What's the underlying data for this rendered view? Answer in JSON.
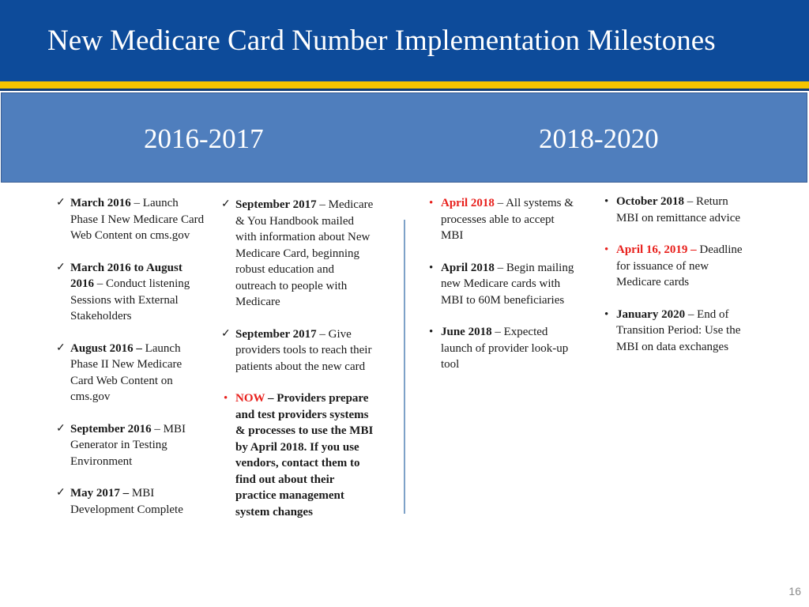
{
  "title": "New Medicare Card Number Implementation Milestones",
  "periods": {
    "left": "2016-2017",
    "right": "2018-2020"
  },
  "col1": {
    "items": [
      {
        "bold": "March 2016",
        "rest": " – Launch Phase I New Medicare Card Web Content on cms.gov"
      },
      {
        "bold": "March 2016 to August 2016",
        "rest": " – Conduct listening Sessions with External Stakeholders"
      },
      {
        "bold": "August 2016 –",
        "rest": " Launch Phase II New Medicare Card Web Content on cms.gov"
      },
      {
        "bold": "September 2016",
        "rest": " – MBI Generator in Testing Environment"
      },
      {
        "bold": "May 2017 –",
        "rest": " MBI Development Complete"
      }
    ]
  },
  "col2": {
    "items": [
      {
        "bold": "September 2017",
        "rest": " – Medicare & You Handbook mailed with information about New Medicare Card, beginning robust education and outreach to people with Medicare"
      },
      {
        "bold": "September 2017",
        "rest": " – Give providers tools to reach their patients about the new card"
      }
    ],
    "now_item": {
      "red": "NOW",
      "bold": " – Providers prepare and test providers systems & processes to use the MBI by April 2018. If you use vendors, contact them to find out about their practice management system changes"
    }
  },
  "col3": {
    "items": [
      {
        "bold": "April 2018",
        "rest": " – All systems & processes able to accept MBI",
        "red_date": true
      },
      {
        "bold": "April 2018",
        "rest": " – Begin mailing new Medicare cards with MBI to 60M beneficiaries",
        "red_date": false
      },
      {
        "bold": "June 2018",
        "rest": " – Expected launch of provider look-up tool",
        "red_date": false
      }
    ]
  },
  "col4": {
    "items": [
      {
        "bold": "October 2018",
        "rest": " – Return MBI on remittance advice",
        "red_date": false
      },
      {
        "bold": "April 16, 2019 –",
        "rest": " Deadline for issuance of new Medicare cards",
        "red_date": true
      },
      {
        "bold": "January 2020",
        "rest": " – End of Transition Period: Use the MBI on data exchanges",
        "red_date": false
      }
    ]
  },
  "page_number": "16",
  "colors": {
    "title_bar": "#0d4b9a",
    "gold_rule": "#f5c400",
    "period_band": "#4f7ebd",
    "highlight_red": "#e8201c"
  },
  "icons": {
    "check": "check-icon",
    "bullet": "bullet-icon"
  }
}
